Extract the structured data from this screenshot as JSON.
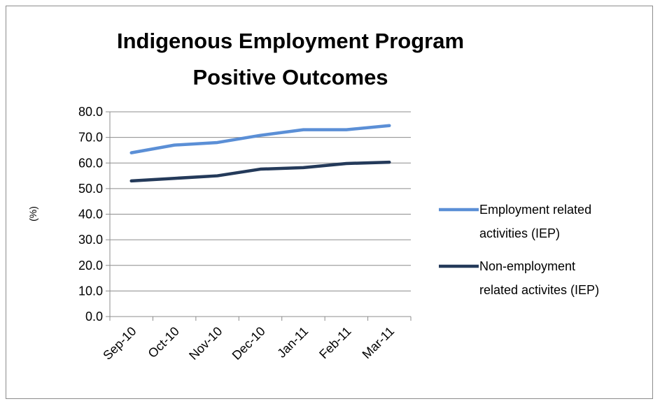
{
  "chart_data": {
    "type": "line",
    "title_lines": [
      "Indigenous Employment Program",
      "Positive Outcomes"
    ],
    "xlabel": "",
    "ylabel": "(%)",
    "categories": [
      "Sep-10",
      "Oct-10",
      "Nov-10",
      "Dec-10",
      "Jan-11",
      "Feb-11",
      "Mar-11"
    ],
    "ylim": [
      0,
      80
    ],
    "yticks": [
      "0.0",
      "10.0",
      "20.0",
      "30.0",
      "40.0",
      "50.0",
      "60.0",
      "70.0",
      "80.0"
    ],
    "grid": true,
    "legend_position": "right",
    "series": [
      {
        "name_lines": [
          "Employment related",
          "activities (IEP)"
        ],
        "color": "#5b8fd6",
        "values": [
          64.0,
          67.0,
          68.0,
          70.8,
          73.0,
          73.0,
          74.6
        ]
      },
      {
        "name_lines": [
          "Non-employment",
          "related activites (IEP)"
        ],
        "color": "#243a5a",
        "values": [
          53.0,
          54.0,
          55.0,
          57.6,
          58.2,
          59.8,
          60.3
        ]
      }
    ]
  }
}
